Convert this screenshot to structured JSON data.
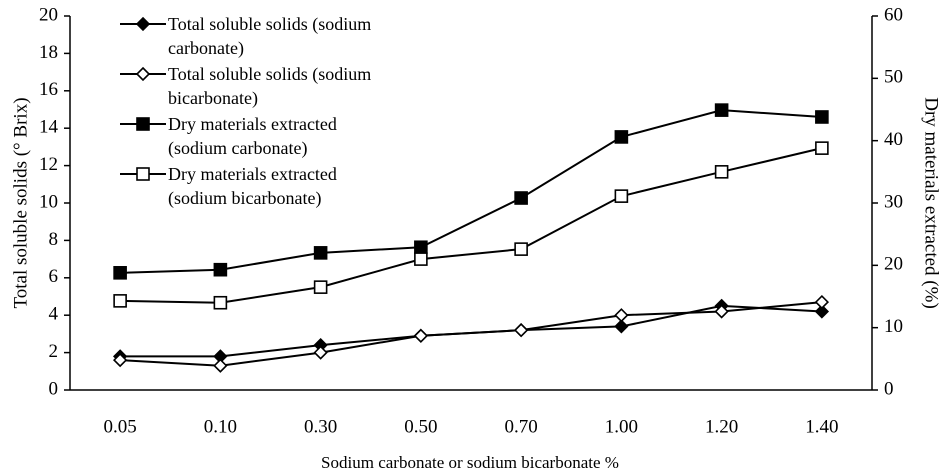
{
  "chart_data": {
    "type": "line",
    "x_label": "Sodium carbonate or sodium bicarbonate %",
    "y_label": "Total soluble solids (° Brix)",
    "y2_label": "Dry materials extracted (%)",
    "categories": [
      "0.05",
      "0.10",
      "0.30",
      "0.50",
      "0.70",
      "1.00",
      "1.20",
      "1.40"
    ],
    "ylim": [
      0,
      20
    ],
    "yticks": [
      0,
      2,
      4,
      6,
      8,
      10,
      12,
      14,
      16,
      18,
      20
    ],
    "y2lim": [
      0,
      60
    ],
    "y2ticks": [
      0,
      10,
      20,
      30,
      40,
      50,
      60
    ],
    "series": [
      {
        "name": "Total soluble solids (sodium carbonate)",
        "color": "#000000",
        "marker": "diamond",
        "filled": true,
        "values": [
          1.8,
          1.8,
          2.4,
          2.9,
          3.2,
          3.4,
          4.5,
          4.2
        ]
      },
      {
        "name": "Total soluble solids (sodium bicarbonate)",
        "color": "#000000",
        "marker": "diamond",
        "filled": false,
        "values": [
          1.6,
          1.3,
          2.0,
          2.9,
          3.2,
          4.0,
          4.2,
          4.7
        ]
      },
      {
        "name": "Dry materials extracted (sodium carbonate)",
        "color": "#000000",
        "marker": "square",
        "filled": true,
        "axis": "y2",
        "values": [
          18.8,
          19.3,
          22.0,
          22.9,
          30.8,
          40.6,
          44.9,
          43.8
        ]
      },
      {
        "name": "Dry materials extracted (sodium bicarbonate)",
        "color": "#000000",
        "marker": "square",
        "filled": false,
        "axis": "y2",
        "values": [
          14.3,
          14.0,
          16.5,
          21.0,
          22.6,
          31.1,
          35.0,
          38.8
        ]
      }
    ]
  }
}
